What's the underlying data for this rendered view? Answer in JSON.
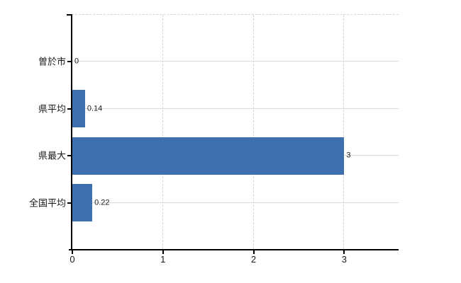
{
  "chart_data": {
    "type": "bar",
    "orientation": "horizontal",
    "categories": [
      "曽於市",
      "県平均",
      "県最大",
      "全国平均"
    ],
    "values": [
      0,
      0.14,
      3,
      0.22
    ],
    "value_labels": [
      "0",
      "0.14",
      "3",
      "0.22"
    ],
    "xlim": [
      0,
      3.6
    ],
    "xticks": [
      0,
      1,
      2,
      3
    ],
    "xtick_labels": [
      "0",
      "1",
      "2",
      "3"
    ],
    "grid": true,
    "legend": false,
    "bar_color": "#3e6fae",
    "h_gridline_color": "#d6ddd2",
    "v_gridline_color": "#d9d3d5",
    "axis_color": "#000000",
    "label_color": "#1a1a1a"
  }
}
